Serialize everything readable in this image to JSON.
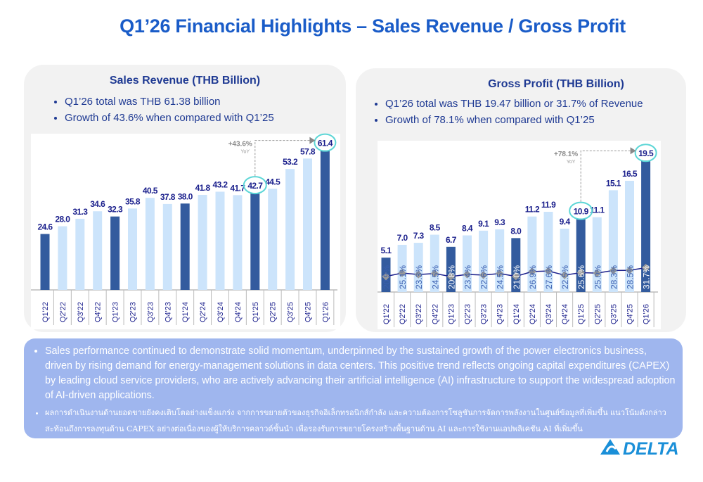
{
  "title": "Q1’26 Financial Highlights – Sales Revenue / Gross Profit",
  "left_panel": {
    "title": "Sales Revenue (THB Billion)",
    "bullets": [
      "Q1’26  total  was THB 61.38 billion",
      "Growth of 43.6% when compared with Q1’25"
    ]
  },
  "right_panel": {
    "title": "Gross Profit (THB Billion)",
    "bullets": [
      "Q1’26 total was THB 19.47 billion or 31.7% of Revenue",
      "Growth of 78.1% when compared with Q1’25"
    ]
  },
  "summary": [
    "Sales performance continued to demonstrate solid momentum, underpinned by the sustained growth of the power electronics business, driven by rising demand for energy-management solutions in data centers. This positive trend reflects ongoing capital expenditures (CAPEX) by leading cloud service providers, who are actively advancing their artificial intelligence (AI) infrastructure to support the widespread adoption of AI-driven applications.",
    "ผลการดำเนินงานด้านยอดขายยังคงเติบโตอย่างแข็งแกร่ง จากการขยายตัวของธุรกิจอิเล็กทรอนิกส์กำลัง และความต้องการโซลูชันการจัดการพลังงานในศูนย์ข้อมูลที่เพิ่มขึ้น แนวโน้มดังกล่าวสะท้อนถึงการลงทุนด้าน CAPEX อย่างต่อเนื่องของผู้ให้บริการคลาวด์ชั้นนำ เพื่อรองรับการขยายโครงสร้างพื้นฐานด้าน AI และการใช้งานแอปพลิเคชัน AI ที่เพิ่มขึ้น"
  ],
  "logo": "DELTA",
  "colors": {
    "title": "#1a5cc8",
    "bar_light": "#cce4fb",
    "bar_q1": "#335b9e",
    "label": "#1a1f8c",
    "highlight": "#5cd6d6",
    "line": "#1a1f8c",
    "marker": "#999999"
  },
  "chart_data": [
    {
      "type": "bar",
      "categories": [
        "Q1'22",
        "Q2'22",
        "Q3'22",
        "Q4'22",
        "Q1'23",
        "Q2'23",
        "Q3'23",
        "Q4'23",
        "Q1'24",
        "Q2'24",
        "Q3'24",
        "Q4'24",
        "Q1'25",
        "Q2'25",
        "Q3'25",
        "Q4'25",
        "Q1'26"
      ],
      "values": [
        24.6,
        28.0,
        31.3,
        34.6,
        32.3,
        35.8,
        40.5,
        37.8,
        38.0,
        41.8,
        43.2,
        41.7,
        42.7,
        44.5,
        53.2,
        57.8,
        61.4
      ],
      "highlighted": [
        "Q1'25",
        "Q1'26"
      ],
      "annotation": {
        "text": "+43.6%",
        "sub": "YoY"
      }
    },
    {
      "type": "bar+line",
      "categories": [
        "Q1'22",
        "Q2'22",
        "Q3'22",
        "Q4'22",
        "Q1'23",
        "Q2'23",
        "Q3'23",
        "Q4'23",
        "Q1'24",
        "Q2'24",
        "Q3'24",
        "Q4'24",
        "Q1'25",
        "Q2'25",
        "Q3'25",
        "Q4'25",
        "Q1'26"
      ],
      "values": [
        5.1,
        7.0,
        7.3,
        8.5,
        6.7,
        8.4,
        9.1,
        9.3,
        8.0,
        11.2,
        11.9,
        9.4,
        10.9,
        11.1,
        15.1,
        16.5,
        19.5
      ],
      "margins": [
        "20.9%",
        "25.1%",
        "23.3%",
        "24.5%",
        "20.8%",
        "23.4%",
        "22.6%",
        "24.5%",
        "21.0%",
        "26.9%",
        "27.6%",
        "22.5%",
        "25.6%",
        "25.0%",
        "28.3%",
        "28.5%",
        "31.7%"
      ],
      "highlighted": [
        "Q1'25",
        "Q1'26"
      ],
      "annotation": {
        "text": "+78.1%",
        "sub": "YoY"
      }
    }
  ]
}
